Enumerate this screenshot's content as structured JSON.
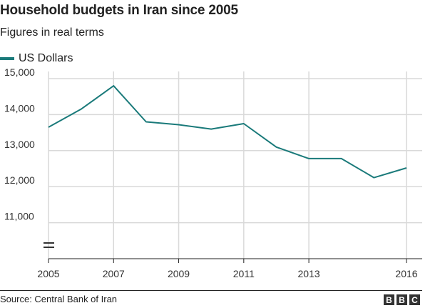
{
  "header": {
    "title": "Household budgets in Iran since 2005",
    "subtitle": "Figures in real terms"
  },
  "legend": {
    "label": "US Dollars"
  },
  "footer": {
    "source": "Source: Central Bank of Iran",
    "logo": [
      "B",
      "B",
      "C"
    ]
  },
  "colors": {
    "series": "#1a7a7a",
    "grid": "#d9d9d9",
    "axis": "#222222"
  },
  "chart_data": {
    "type": "line",
    "title": "Household budgets in Iran since 2005",
    "subtitle": "Figures in real terms",
    "xlabel": "",
    "ylabel": "",
    "x": [
      2005,
      2006,
      2007,
      2008,
      2009,
      2010,
      2011,
      2012,
      2013,
      2014,
      2015,
      2016
    ],
    "series": [
      {
        "name": "US Dollars",
        "values": [
          13650,
          14150,
          14800,
          13800,
          13720,
          13600,
          13750,
          13100,
          12780,
          12780,
          12250,
          12520
        ]
      }
    ],
    "x_ticks": [
      "2005",
      "2007",
      "2009",
      "2011",
      "2013",
      "2016"
    ],
    "y_ticks": [
      "11,000",
      "12,000",
      "13,000",
      "14,000",
      "15,000"
    ],
    "ylim": [
      10000,
      15000
    ],
    "xlim": [
      2005,
      2016
    ],
    "axis_break": true,
    "grid": true,
    "legend_position": "top-left"
  }
}
